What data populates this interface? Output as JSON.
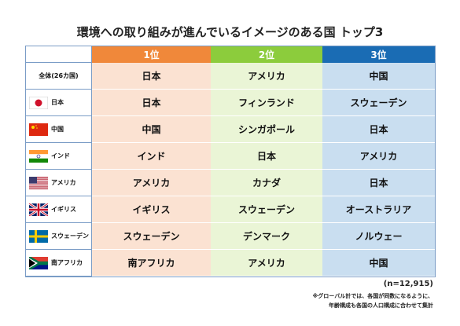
{
  "title": "環境への取り組みが進んでいるイメージのある国 トップ3",
  "table": {
    "header": [
      "1位",
      "2位",
      "3位"
    ],
    "rows": [
      {
        "label": "全体(26カ国)",
        "ranks": [
          "日本",
          "アメリカ",
          "中国"
        ]
      },
      {
        "label": "日本",
        "ranks": [
          "日本",
          "フィンランド",
          "スウェーデン"
        ]
      },
      {
        "label": "中国",
        "ranks": [
          "中国",
          "シンガポール",
          "日本"
        ]
      },
      {
        "label": "インド",
        "ranks": [
          "インド",
          "日本",
          "アメリカ"
        ]
      },
      {
        "label": "アメリカ",
        "ranks": [
          "アメリカ",
          "カナダ",
          "日本"
        ]
      },
      {
        "label": "イギリス",
        "ranks": [
          "イギリス",
          "スウェーデン",
          "オーストラリア"
        ]
      },
      {
        "label": "スウェーデン",
        "ranks": [
          "スウェーデン",
          "デンマーク",
          "ノルウェー"
        ]
      },
      {
        "label": "南アフリカ",
        "ranks": [
          "南アフリカ",
          "アメリカ",
          "中国"
        ]
      }
    ]
  },
  "notes": [
    "(n=12,915)",
    "※グローバル計では、各国が同数になるように、",
    "年齢構成も各国の人口構成に合わせて集計"
  ]
}
